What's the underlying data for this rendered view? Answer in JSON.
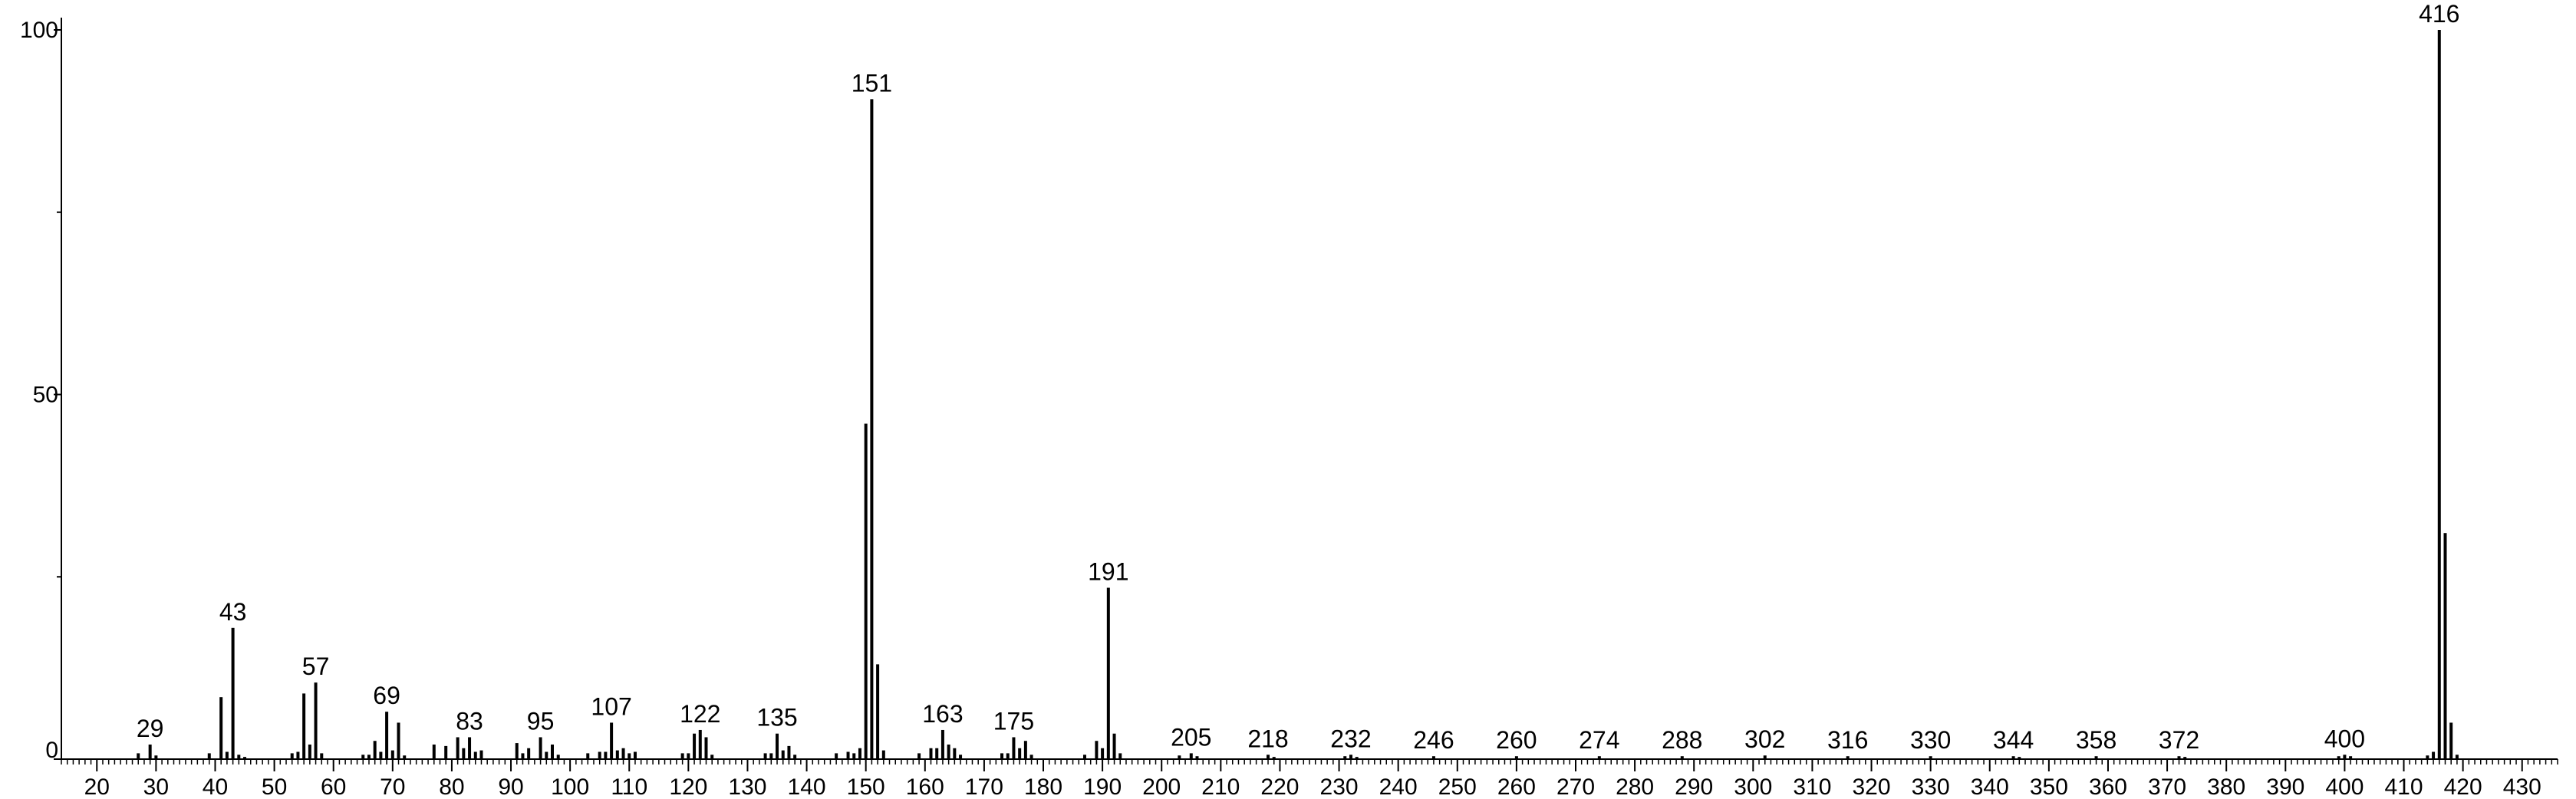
{
  "chart_data": {
    "type": "bar",
    "x": [
      27,
      29,
      30,
      39,
      41,
      42,
      43,
      44,
      45,
      53,
      54,
      55,
      56,
      57,
      58,
      65,
      66,
      67,
      68,
      69,
      70,
      71,
      72,
      77,
      79,
      81,
      82,
      83,
      84,
      85,
      91,
      92,
      93,
      95,
      96,
      97,
      98,
      103,
      105,
      106,
      107,
      108,
      109,
      110,
      111,
      119,
      120,
      121,
      122,
      123,
      124,
      133,
      134,
      135,
      136,
      137,
      138,
      145,
      147,
      148,
      149,
      150,
      151,
      152,
      153,
      159,
      161,
      162,
      163,
      164,
      165,
      166,
      173,
      174,
      175,
      176,
      177,
      178,
      187,
      189,
      190,
      191,
      192,
      193,
      203,
      205,
      206,
      218,
      219,
      231,
      232,
      233,
      246,
      260,
      274,
      288,
      302,
      316,
      330,
      344,
      345,
      358,
      372,
      373,
      399,
      400,
      401,
      414,
      415,
      416,
      417,
      418,
      419
    ],
    "values": [
      0.8,
      2,
      0.5,
      0.8,
      8.5,
      1,
      18,
      0.6,
      0.3,
      0.8,
      1,
      9,
      2,
      10.5,
      0.8,
      0.6,
      0.6,
      2.5,
      1,
      6.5,
      1.2,
      5,
      0.5,
      2,
      1.8,
      3,
      1.5,
      3,
      1,
      1.2,
      2.2,
      0.8,
      1.5,
      3,
      1,
      2,
      0.6,
      0.8,
      1,
      1,
      5,
      1.2,
      1.5,
      0.8,
      1,
      0.8,
      0.8,
      3.5,
      4,
      3,
      0.6,
      0.8,
      0.8,
      3.5,
      1.2,
      1.8,
      0.6,
      0.8,
      1,
      0.8,
      1.5,
      46,
      90.5,
      13,
      1.2,
      0.8,
      1.5,
      1.5,
      4,
      2,
      1.5,
      0.6,
      0.8,
      0.8,
      3,
      1.5,
      2.5,
      0.6,
      0.6,
      2.5,
      1.5,
      23.5,
      3.5,
      0.8,
      0.5,
      0.8,
      0.4,
      0.6,
      0.3,
      0.4,
      0.6,
      0.3,
      0.4,
      0.4,
      0.4,
      0.4,
      0.5,
      0.4,
      0.4,
      0.4,
      0.3,
      0.4,
      0.4,
      0.3,
      0.4,
      0.6,
      0.4,
      0.5,
      1,
      100,
      31,
      5,
      0.6
    ],
    "labeled_x": [
      29,
      43,
      57,
      69,
      83,
      95,
      107,
      122,
      135,
      151,
      163,
      175,
      191,
      205,
      218,
      232,
      246,
      260,
      274,
      288,
      302,
      316,
      330,
      344,
      358,
      372,
      400,
      416
    ],
    "color": "#000000",
    "xlim": [
      14,
      436
    ],
    "xticks": [
      20,
      30,
      40,
      50,
      60,
      70,
      80,
      90,
      100,
      110,
      120,
      130,
      140,
      150,
      160,
      170,
      180,
      190,
      200,
      210,
      220,
      230,
      240,
      250,
      260,
      270,
      280,
      290,
      300,
      310,
      320,
      330,
      340,
      350,
      360,
      370,
      380,
      390,
      400,
      410,
      420,
      430
    ],
    "x_minor_tick_step": 1,
    "ylim": [
      0,
      100
    ],
    "yticks": [
      0,
      50,
      100
    ],
    "y_minor_ticks": [
      25,
      75
    ]
  }
}
